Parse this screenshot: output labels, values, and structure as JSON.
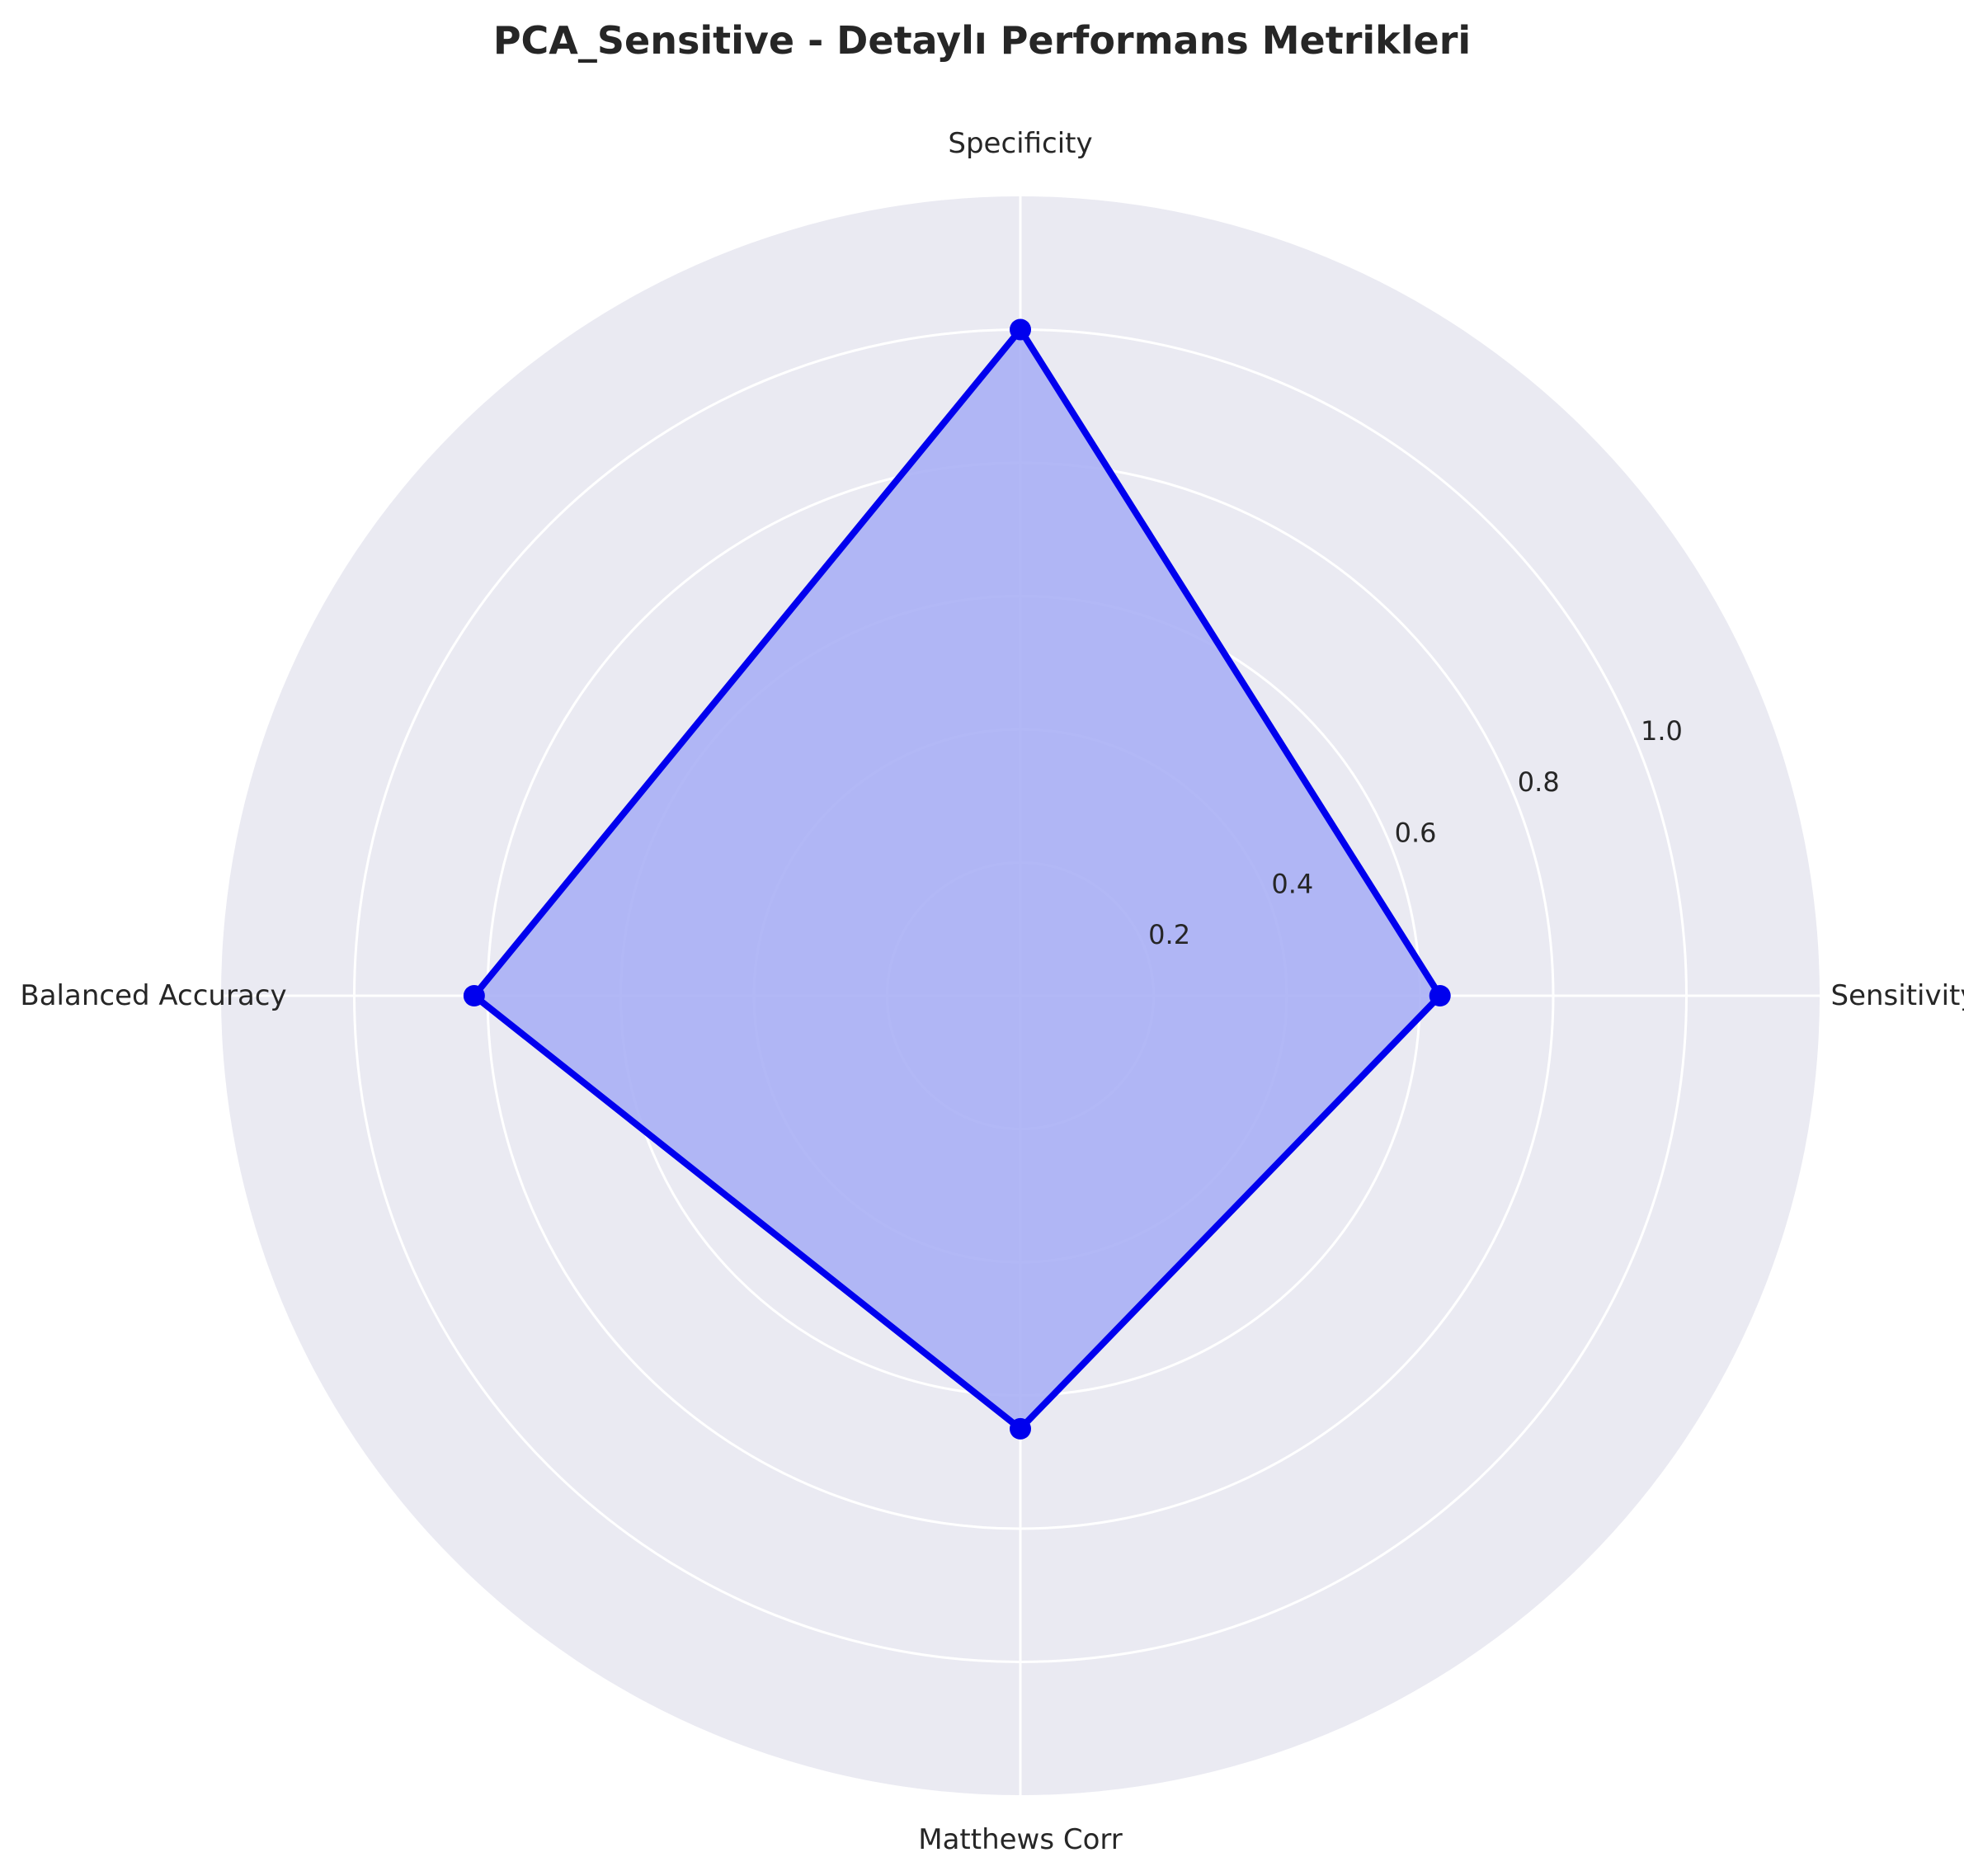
{
  "chart_data": {
    "type": "radar",
    "title": "PCA_Sensitive - Detaylı Performans Metrikleri",
    "categories": [
      "Sensitivity",
      "Specificity",
      "Balanced Accuracy",
      "Matthews Corr"
    ],
    "series": [
      {
        "values": [
          0.63,
          1.0,
          0.82,
          0.65
        ],
        "color": "#0000ee",
        "fill": "#aab0f5"
      }
    ],
    "rlim": [
      0,
      1.2
    ],
    "r_ticks": [
      "0.2",
      "0.4",
      "0.6",
      "0.8",
      "1.0"
    ],
    "r_tick_values": [
      0.2,
      0.4,
      0.6,
      0.8,
      1.0
    ],
    "grid": true,
    "background": "#eaeaf2",
    "grid_color": "#ffffff"
  }
}
